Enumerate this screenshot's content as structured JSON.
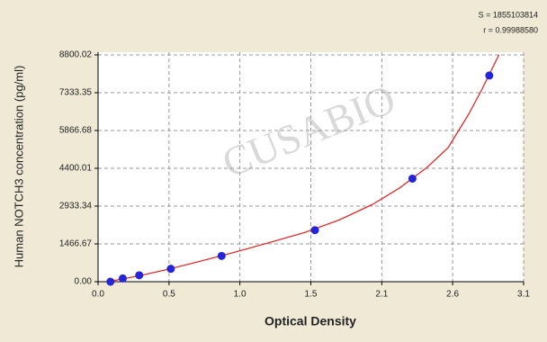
{
  "chart_data": {
    "type": "scatter",
    "x_label": "Optical Density",
    "y_label": "Human  NOTCH3 concentration (pg/ml)",
    "stats": [
      "S = 1855103814",
      "r = 0.99988580"
    ],
    "watermark": "CUSABIO",
    "xlim": [
      0,
      3.1
    ],
    "xticks": [
      {
        "value": 0,
        "label": "0.0"
      },
      {
        "value": 0.517,
        "label": "0.5"
      },
      {
        "value": 1.033,
        "label": "1.0"
      },
      {
        "value": 1.55,
        "label": "1.5"
      },
      {
        "value": 2.067,
        "label": "2.1"
      },
      {
        "value": 2.583,
        "label": "2.6"
      },
      {
        "value": 3.1,
        "label": "3.1"
      }
    ],
    "ylim": [
      0,
      8800.02
    ],
    "yticks": [
      {
        "value": 0,
        "label": "0.00"
      },
      1466.67,
      2933.34,
      4400.01,
      5866.68,
      7333.35,
      8800.02
    ],
    "grid": true,
    "points": {
      "color": "#2424d8",
      "x": [
        0.09,
        0.18,
        0.3,
        0.53,
        0.9,
        1.58,
        2.29,
        2.85
      ],
      "y": [
        0,
        125,
        250,
        500,
        1000,
        2000,
        4000,
        8000
      ]
    },
    "curve": {
      "color": "#e81818",
      "x": [
        0.07,
        0.3,
        0.5,
        0.75,
        1.0,
        1.25,
        1.5,
        1.75,
        2.0,
        2.2,
        2.4,
        2.55,
        2.7,
        2.8,
        2.92
      ],
      "y": [
        0,
        230,
        470,
        800,
        1150,
        1520,
        1900,
        2380,
        3000,
        3650,
        4450,
        5200,
        6500,
        7500,
        8800
      ]
    }
  }
}
